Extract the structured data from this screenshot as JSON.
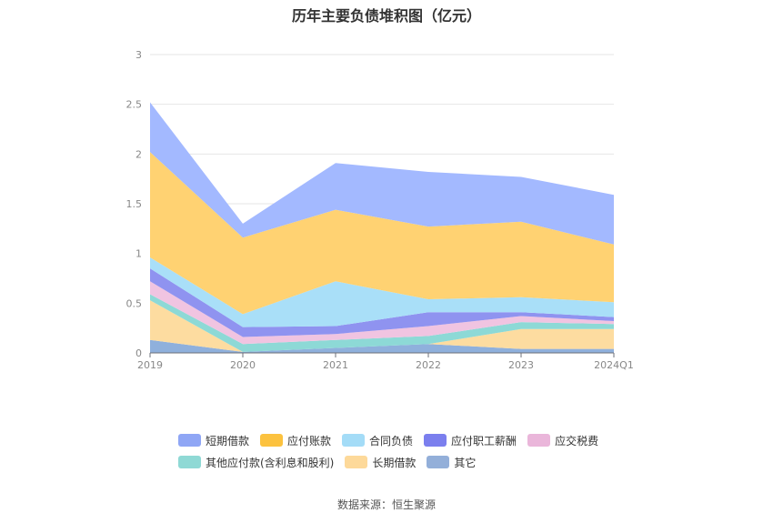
{
  "chart_data": {
    "type": "area",
    "stacked": true,
    "title": "历年主要负债堆积图（亿元）",
    "source": "数据来源：恒生聚源",
    "x": [
      "2019",
      "2020",
      "2021",
      "2022",
      "2023",
      "2024Q1"
    ],
    "y_ticks": [
      "0",
      "0.5",
      "1",
      "1.5",
      "2",
      "2.5",
      "3"
    ],
    "ylim": [
      0,
      3
    ],
    "grid": true,
    "legend_position": "bottom",
    "series": [
      {
        "name": "其它",
        "color": "#8fb0dc",
        "values": [
          0.13,
          0.01,
          0.05,
          0.09,
          0.04,
          0.04
        ]
      },
      {
        "name": "长期借款",
        "color": "#fddca0",
        "values": [
          0.4,
          0.0,
          0.0,
          0.0,
          0.2,
          0.2
        ]
      },
      {
        "name": "其他应付款(含利息和股利)",
        "color": "#8dd9d6",
        "values": [
          0.06,
          0.08,
          0.08,
          0.08,
          0.07,
          0.05
        ]
      },
      {
        "name": "应交税费",
        "color": "#f0c4e1",
        "values": [
          0.13,
          0.07,
          0.06,
          0.1,
          0.06,
          0.03
        ]
      },
      {
        "name": "应付职工薪酬",
        "color": "#8f93f0",
        "values": [
          0.13,
          0.1,
          0.08,
          0.14,
          0.04,
          0.04
        ]
      },
      {
        "name": "合同负债",
        "color": "#a9dff8",
        "values": [
          0.11,
          0.13,
          0.45,
          0.13,
          0.15,
          0.15
        ]
      },
      {
        "name": "应付账款",
        "color": "#ffd272",
        "values": [
          1.06,
          0.77,
          0.72,
          0.73,
          0.76,
          0.58
        ]
      },
      {
        "name": "短期借款",
        "color": "#a3b9ff",
        "values": [
          0.5,
          0.14,
          0.47,
          0.55,
          0.45,
          0.5
        ]
      }
    ]
  },
  "legend_rows": [
    [
      {
        "label": "短期借款",
        "color": "#8fa6f5"
      },
      {
        "label": "应付账款",
        "color": "#fcc23f"
      },
      {
        "label": "合同负债",
        "color": "#a4dcf7"
      },
      {
        "label": "应付职工薪酬",
        "color": "#7b7fee"
      },
      {
        "label": "应交税费",
        "color": "#eab6da"
      }
    ],
    [
      {
        "label": "其他应付款(含利息和股利)",
        "color": "#8fd9d5"
      },
      {
        "label": "长期借款",
        "color": "#fdd99a"
      },
      {
        "label": "其它",
        "color": "#93afd9"
      }
    ]
  ]
}
